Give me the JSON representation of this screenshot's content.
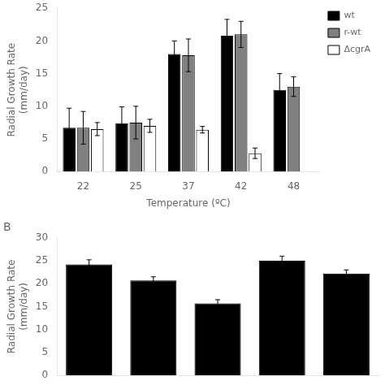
{
  "chart_data": [
    {
      "type": "bar",
      "categories": [
        "22",
        "25",
        "37",
        "42",
        "48"
      ],
      "series": [
        {
          "name": "wt",
          "color": "#000000",
          "values": [
            6.7,
            7.4,
            18.0,
            20.8,
            12.5
          ],
          "errors": [
            3.0,
            2.5,
            2.0,
            2.5,
            2.5
          ]
        },
        {
          "name": "r-wt",
          "color": "#808080",
          "values": [
            6.7,
            7.5,
            17.8,
            21.0,
            13.0
          ],
          "errors": [
            2.5,
            2.5,
            2.5,
            2.0,
            1.5
          ]
        },
        {
          "name": "ΔcgrA",
          "color": "#ffffff",
          "values": [
            6.5,
            7.0,
            6.4,
            2.8,
            null
          ],
          "errors": [
            1.0,
            1.0,
            0.5,
            0.8,
            null
          ]
        }
      ],
      "xlabel": "Temperature (ºC)",
      "ylabel": "Radial Growth Rate\n(mm/day)",
      "ylim": [
        0,
        25
      ],
      "yticks": [
        0,
        5,
        10,
        15,
        20,
        25
      ],
      "grid": false,
      "legend": "right"
    },
    {
      "type": "bar",
      "title": "B",
      "categories": [
        null,
        null,
        null,
        null,
        null
      ],
      "values": [
        24.2,
        20.7,
        15.7,
        25.0,
        22.2
      ],
      "errors": [
        1.0,
        0.8,
        0.8,
        1.0,
        0.8
      ],
      "color": "#000000",
      "ylabel": "Radial Growth Rate\n(mm/day)",
      "ylim": [
        0,
        30
      ],
      "yticks": [
        0,
        5,
        10,
        15,
        20,
        25,
        30
      ],
      "grid": false,
      "tick_labels": "y"
    }
  ]
}
